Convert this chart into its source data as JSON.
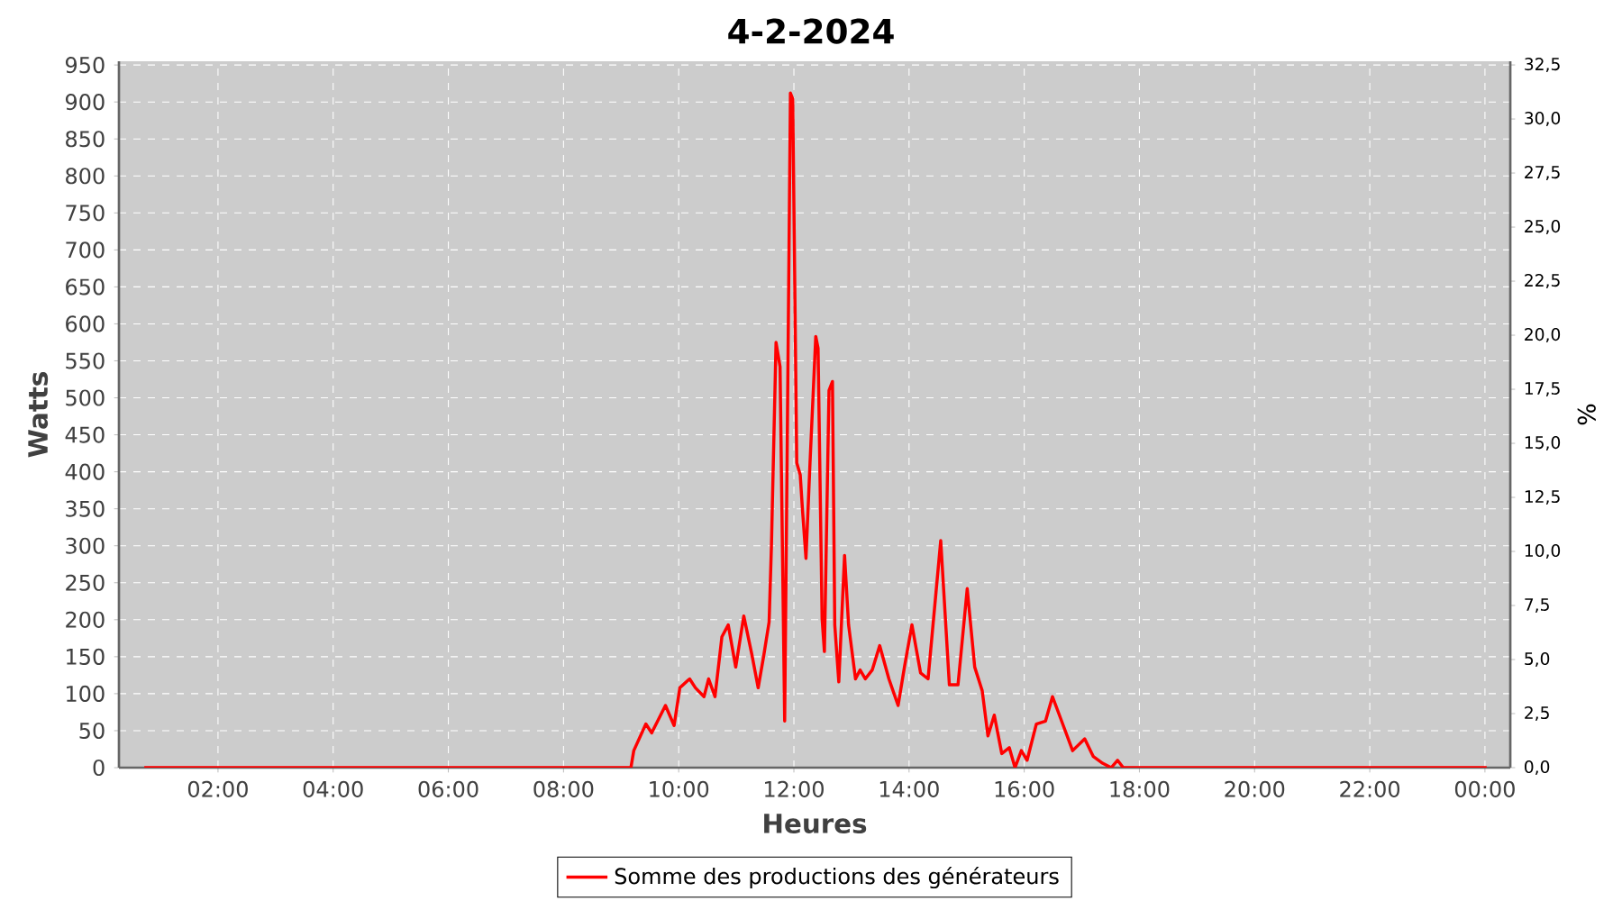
{
  "chart_data": {
    "type": "line",
    "title": "4-2-2024",
    "xlabel": "Heures",
    "ylabel": "Watts",
    "y2label": "%",
    "x": [
      0.72,
      8.85,
      9.17,
      9.22,
      9.43,
      9.53,
      9.77,
      9.92,
      10.02,
      10.19,
      10.29,
      10.44,
      10.52,
      10.63,
      10.75,
      10.86,
      10.99,
      11.13,
      11.27,
      11.38,
      11.48,
      11.57,
      11.61,
      11.69,
      11.76,
      11.84,
      11.88,
      11.94,
      11.98,
      12.05,
      12.11,
      12.15,
      12.21,
      12.28,
      12.38,
      12.42,
      12.49,
      12.53,
      12.61,
      12.67,
      12.71,
      12.78,
      12.88,
      12.95,
      13.07,
      13.15,
      13.24,
      13.36,
      13.49,
      13.65,
      13.81,
      13.92,
      14.05,
      14.2,
      14.33,
      14.55,
      14.7,
      14.85,
      15.01,
      15.14,
      15.27,
      15.37,
      15.48,
      15.61,
      15.74,
      15.84,
      15.95,
      16.05,
      16.21,
      16.37,
      16.49,
      16.63,
      16.84,
      17.05,
      17.2,
      17.36,
      17.51,
      17.62,
      17.72,
      24.03
    ],
    "series": [
      {
        "name": "Somme des productions des  générateurs",
        "color": "#ff0000",
        "values": [
          0,
          0,
          0,
          23,
          59,
          47,
          84,
          57,
          108,
          120,
          108,
          96,
          120,
          96,
          177,
          193,
          136,
          205,
          153,
          108,
          153,
          197,
          299,
          575,
          542,
          63,
          396,
          912,
          904,
          412,
          396,
          348,
          283,
          412,
          583,
          567,
          201,
          157,
          510,
          522,
          193,
          116,
          287,
          193,
          120,
          132,
          120,
          132,
          165,
          120,
          84,
          136,
          193,
          128,
          120,
          307,
          112,
          112,
          242,
          136,
          104,
          43,
          71,
          19,
          27,
          0,
          23,
          10,
          59,
          63,
          96,
          67,
          23,
          39,
          15,
          6,
          0,
          10,
          0,
          0
        ]
      }
    ],
    "xlim": [
      0.28,
      24.44
    ],
    "ylim": [
      0,
      955
    ],
    "y2lim": [
      0,
      32.67
    ],
    "xticks": [
      {
        "value": 2,
        "label": "02:00"
      },
      {
        "value": 4,
        "label": "04:00"
      },
      {
        "value": 6,
        "label": "06:00"
      },
      {
        "value": 8,
        "label": "08:00"
      },
      {
        "value": 10,
        "label": "10:00"
      },
      {
        "value": 12,
        "label": "12:00"
      },
      {
        "value": 14,
        "label": "14:00"
      },
      {
        "value": 16,
        "label": "16:00"
      },
      {
        "value": 18,
        "label": "18:00"
      },
      {
        "value": 20,
        "label": "20:00"
      },
      {
        "value": 22,
        "label": "22:00"
      },
      {
        "value": 24,
        "label": "00:00"
      }
    ],
    "yticks": [
      0,
      50,
      100,
      150,
      200,
      250,
      300,
      350,
      400,
      450,
      500,
      550,
      600,
      650,
      700,
      750,
      800,
      850,
      900,
      950
    ],
    "y2ticks": [
      {
        "value": 0,
        "label": "0,0"
      },
      {
        "value": 2.5,
        "label": "2,5"
      },
      {
        "value": 5,
        "label": "5,0"
      },
      {
        "value": 7.5,
        "label": "7,5"
      },
      {
        "value": 10,
        "label": "10,0"
      },
      {
        "value": 12.5,
        "label": "12,5"
      },
      {
        "value": 15,
        "label": "15,0"
      },
      {
        "value": 17.5,
        "label": "17,5"
      },
      {
        "value": 20,
        "label": "20,0"
      },
      {
        "value": 22.5,
        "label": "22,5"
      },
      {
        "value": 25,
        "label": "25,0"
      },
      {
        "value": 27.5,
        "label": "27,5"
      },
      {
        "value": 30,
        "label": "30,0"
      },
      {
        "value": 32.5,
        "label": "32,5"
      }
    ],
    "grid": true,
    "legend": "bottom",
    "marker": "none",
    "line_style": "solid"
  }
}
